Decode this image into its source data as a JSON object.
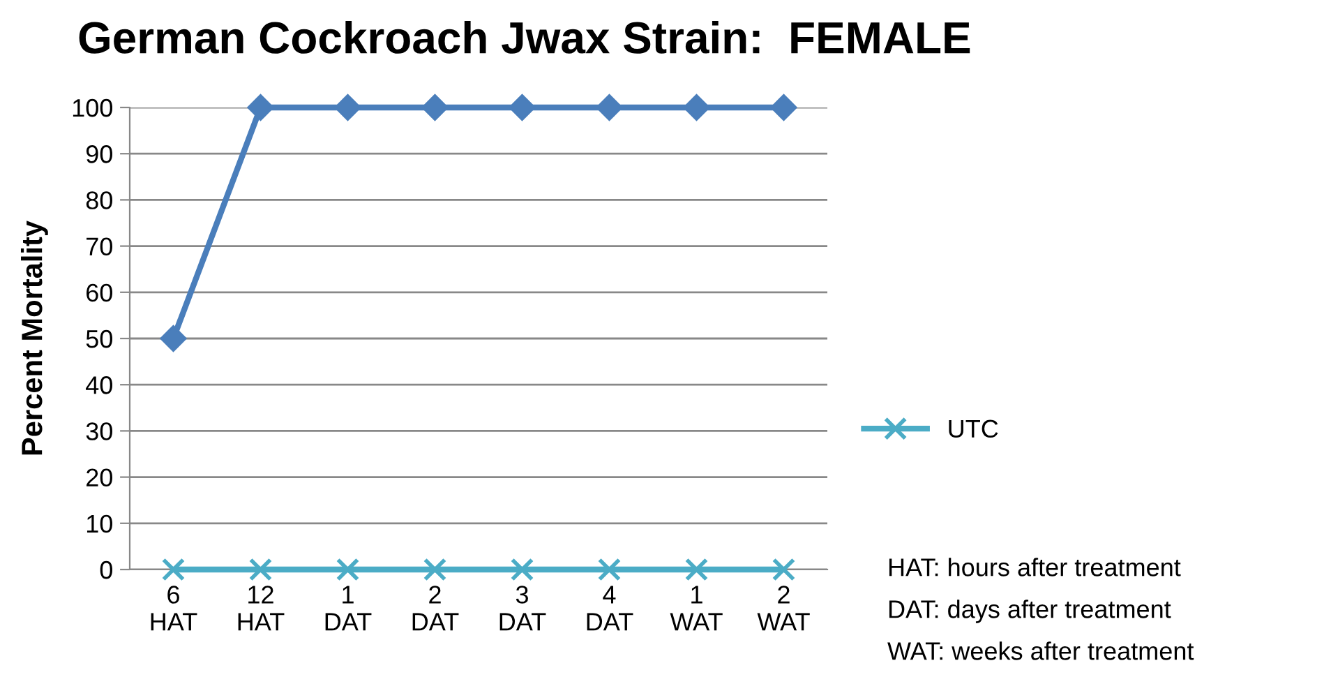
{
  "chart_data": {
    "type": "line",
    "title": "German Cockroach Jwax Strain:  FEMALE",
    "ylabel": "Percent Mortality",
    "categories": [
      "6\nHAT",
      "12\nHAT",
      "1\nDAT",
      "2\nDAT",
      "3\nDAT",
      "4\nDAT",
      "1\nWAT",
      "2\nWAT"
    ],
    "series": [
      {
        "color": "#4a7ebb",
        "marker": "diamond",
        "values": [
          50,
          100,
          100,
          100,
          100,
          100,
          100,
          100
        ]
      },
      {
        "name": "UTC",
        "color": "#4bacc6",
        "marker": "cross",
        "values": [
          0,
          0,
          0,
          0,
          0,
          0,
          0,
          0
        ]
      }
    ],
    "ylim": [
      0,
      100
    ],
    "yticks": [
      0,
      10,
      20,
      30,
      40,
      50,
      60,
      70,
      80,
      90,
      100
    ],
    "grid": "y",
    "legend": "right",
    "line_style": "solid",
    "annotations": [
      "HAT: hours after treatment",
      "DAT: days after treatment",
      "WAT: weeks after treatment"
    ]
  }
}
